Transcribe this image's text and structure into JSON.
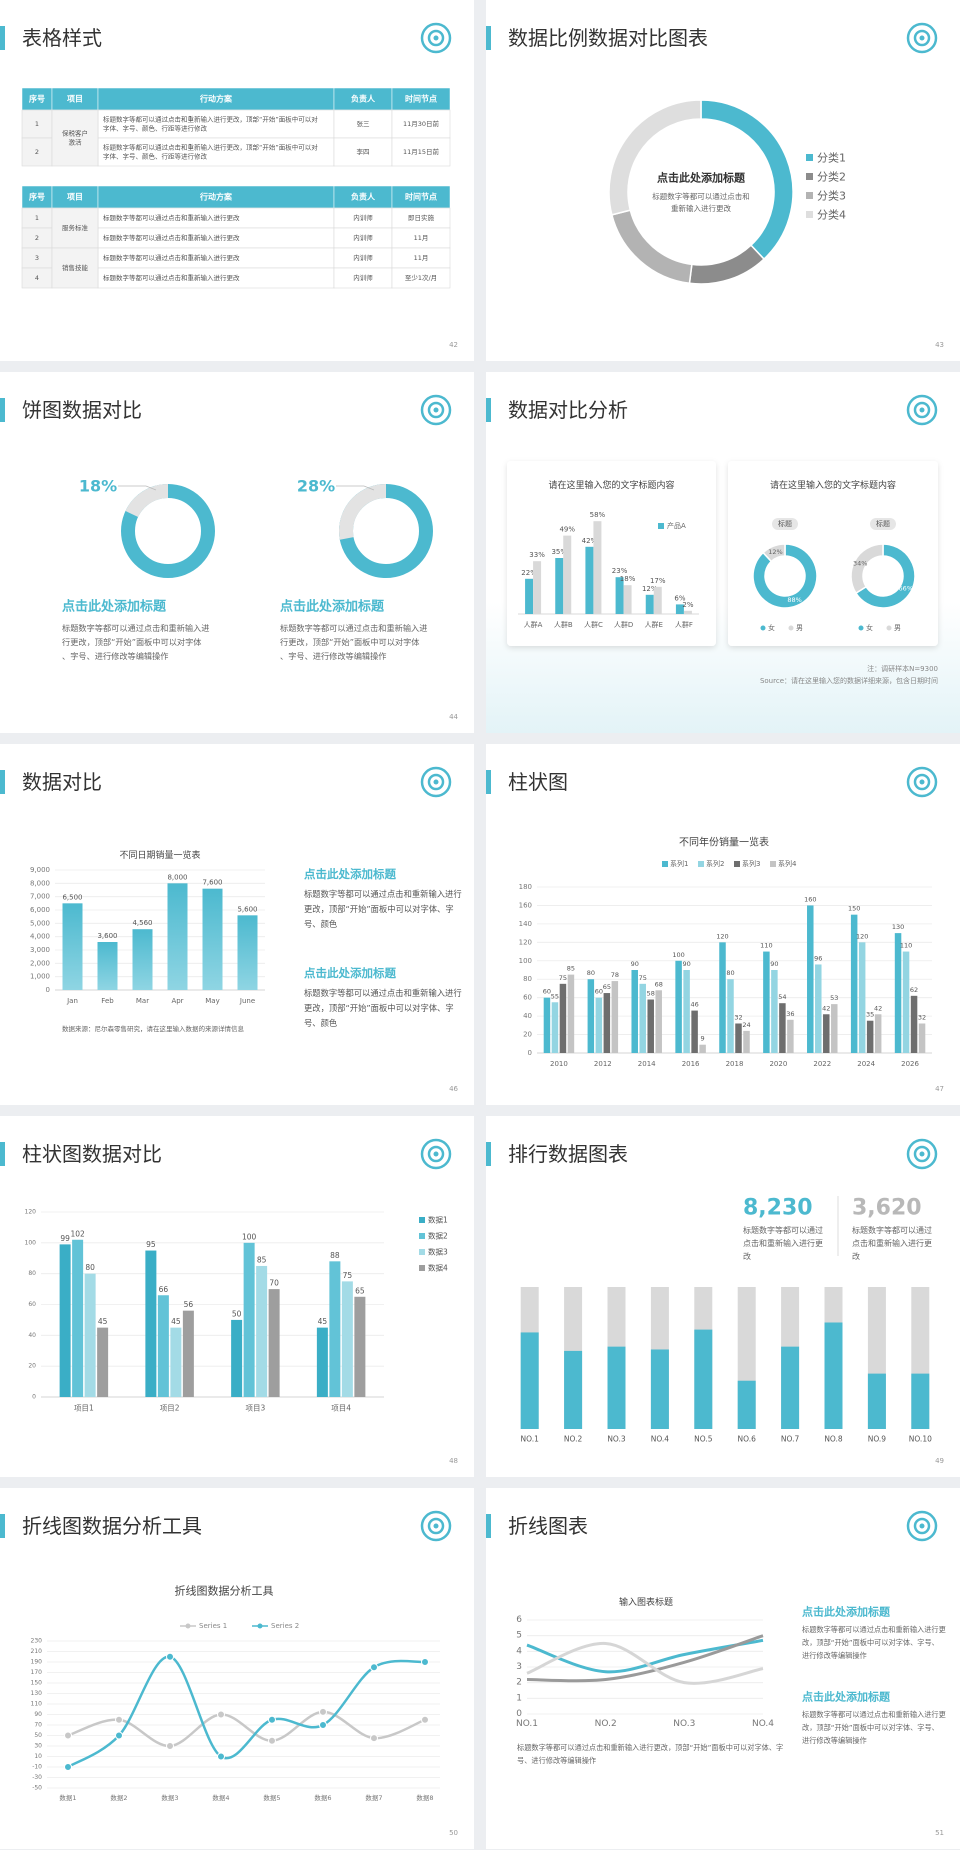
{
  "slides": [
    {
      "title": "表格样式",
      "page": "42",
      "tables": [
        {
          "headers": [
            "序号",
            "项目",
            "行动方案",
            "负责人",
            "时间节点"
          ],
          "groups": [
            {
              "item": "保税客户激活",
              "rows": [
                [
                  "1",
                  "标题数字等都可以通过点击和重新输入进行更改，顶部“开始”面板中可以对字体、字号、颜色、行距等进行修改",
                  "张三",
                  "11月30日前"
                ],
                [
                  "2",
                  "标题数字等都可以通过点击和重新输入进行更改，顶部“开始”面板中可以对字体、字号、颜色、行距等进行修改",
                  "李四",
                  "11月15日前"
                ]
              ]
            }
          ]
        },
        {
          "headers": [
            "序号",
            "项目",
            "行动方案",
            "负责人",
            "时间节点"
          ],
          "groups": [
            {
              "item": "服务标准",
              "rows": [
                [
                  "1",
                  "标题数字等都可以通过点击和重新输入进行更改",
                  "内训师",
                  "即日实施"
                ],
                [
                  "2",
                  "标题数字等都可以通过点击和重新输入进行更改",
                  "内训师",
                  "11月"
                ]
              ]
            },
            {
              "item": "销售技能",
              "rows": [
                [
                  "3",
                  "标题数字等都可以通过点击和重新输入进行更改",
                  "内训师",
                  "11月"
                ],
                [
                  "4",
                  "标题数字等都可以通过点击和重新输入进行更改",
                  "内训师",
                  "至少1次/月"
                ]
              ]
            }
          ]
        }
      ]
    },
    {
      "title": "数据比例数据对比图表",
      "page": "43",
      "chart": {
        "type": "donut",
        "categories": [
          "分类1",
          "分类2",
          "分类3",
          "分类4"
        ],
        "values": [
          38,
          14,
          19,
          29
        ],
        "colors": [
          "#4cb9cf",
          "#8c8c8c",
          "#b3b3b3",
          "#dedede"
        ],
        "center_title": "点击此处添加标题",
        "center_text": "标题数字等都可以通过点击和重新输入进行更改"
      }
    },
    {
      "title": "饼图数据对比",
      "page": "44",
      "charts": [
        {
          "type": "donut",
          "values": [
            18
          ],
          "value_labels": [
            "18%"
          ],
          "colors": [
            "#e3e3e3",
            "#4cb9cf"
          ],
          "heading": "点击此处添加标题",
          "text": "标题数字等都可以通过点击和重新输入进行更改，顶部“开始”面板中可以对字体、字号、进行修改等编辑操作"
        },
        {
          "type": "donut",
          "values": [
            28
          ],
          "value_labels": [
            "28%"
          ],
          "colors": [
            "#e3e3e3",
            "#4cb9cf"
          ],
          "heading": "点击此处添加标题",
          "text": "标题数字等都可以通过点击和重新输入进行更改，顶部“开始”面板中可以对字体、字号、进行修改等编辑操作"
        }
      ]
    },
    {
      "title": "数据对比分析",
      "page": "45",
      "cards": [
        {
          "title": "请在这里输入您的文字标题内容",
          "chart": {
            "type": "bar",
            "categories": [
              "人群A",
              "人群B",
              "人群C",
              "人群D",
              "人群E",
              "人群F"
            ],
            "series": [
              {
                "name": "产品A",
                "color": "#4cb9cf",
                "values": [
                  22,
                  35,
                  42,
                  23,
                  12,
                  6
                ],
                "value_labels": [
                  "22%",
                  "35%",
                  "42%",
                  "23%",
                  "12%",
                  "6%"
                ]
              },
              {
                "color": "#d9d9d9",
                "values": [
                  33,
                  49,
                  58,
                  18,
                  17,
                  2
                ],
                "value_labels": [
                  "33%",
                  "49%",
                  "58%",
                  "18%",
                  "17%",
                  "2%"
                ]
              }
            ]
          }
        },
        {
          "title": "请在这里输入您的文字标题内容",
          "categories": [
            "女",
            "男"
          ],
          "colors": [
            "#4cb9cf",
            "#d9d9d9"
          ],
          "charts": [
            {
              "type": "donut",
              "label": "标题",
              "values": [
                88,
                12
              ],
              "value_labels": [
                "88%",
                "12%"
              ]
            },
            {
              "type": "donut",
              "label": "标题",
              "values": [
                66,
                34
              ],
              "value_labels": [
                "66%",
                "34%"
              ]
            }
          ]
        }
      ],
      "notes": [
        "注：调研样本N=9300",
        "Source：请在这里输入您的数据详细来源，包含日期时间"
      ]
    },
    {
      "title": "数据对比",
      "page": "46",
      "chart": {
        "type": "bar",
        "title": "不同日期销量一览表",
        "categories": [
          "Jan",
          "Feb",
          "Mar",
          "Apr",
          "May",
          "June"
        ],
        "values": [
          6500,
          3600,
          4560,
          8000,
          7600,
          5600
        ],
        "value_labels": [
          "6,500",
          "3,600",
          "4,560",
          "8,000",
          "7,600",
          "5,600"
        ],
        "color": "#4cb9cf",
        "ylim": [
          0,
          9000
        ],
        "yticks": [
          0,
          {
            "value": 1000,
            "label": "1,000"
          },
          {
            "value": 2000,
            "label": "2,000"
          },
          {
            "value": 3000,
            "label": "3,000"
          },
          {
            "value": 4000,
            "label": "4,000"
          },
          {
            "value": 5000,
            "label": "5,000"
          },
          {
            "value": 6000,
            "label": "6,000"
          },
          {
            "value": 7000,
            "label": "7,000"
          },
          {
            "value": 8000,
            "label": "8,000"
          },
          {
            "value": 9000,
            "label": "9,000"
          }
        ],
        "grid": true
      },
      "source": "数据来源：尼尔森零售研究，请在这里输入数据的来源详情信息",
      "blocks": [
        {
          "heading": "点击此处添加标题",
          "text": "标题数字等都可以通过点击和重新输入进行更改，顶部“开始”面板中可以对字体、字号、颜色"
        },
        {
          "heading": "点击此处添加标题",
          "text": "标题数字等都可以通过点击和重新输入进行更改，顶部“开始”面板中可以对字体、字号、颜色"
        }
      ]
    },
    {
      "title": "柱状图",
      "page": "47",
      "chart": {
        "type": "bar",
        "title": "不同年份销量一览表",
        "categories": [
          "2010",
          "2012",
          "2014",
          "2016",
          "2018",
          "2020",
          "2022",
          "2024",
          "2026"
        ],
        "series": [
          {
            "name": "系列1",
            "color": "#4cb9cf",
            "values": [
              60,
              80,
              90,
              100,
              120,
              110,
              160,
              150,
              130
            ]
          },
          {
            "name": "系列2",
            "color": "#93d5e2",
            "values": [
              55,
              60,
              75,
              90,
              80,
              90,
              96,
              120,
              110
            ]
          },
          {
            "name": "系列3",
            "color": "#6e6e6e",
            "values": [
              75,
              65,
              58,
              46,
              32,
              54,
              42,
              35,
              62
            ]
          },
          {
            "name": "系列4",
            "color": "#c4c4c4",
            "values": [
              85,
              78,
              68,
              9,
              24,
              36,
              53,
              42,
              32
            ]
          }
        ],
        "ylim": [
          0,
          180
        ],
        "yticks": [
          0,
          20,
          40,
          60,
          80,
          100,
          120,
          140,
          160,
          180
        ],
        "grid": true
      }
    },
    {
      "title": "柱状图数据对比",
      "page": "48",
      "chart": {
        "type": "bar",
        "categories": [
          "项目1",
          "项目2",
          "项目3",
          "项目4"
        ],
        "series": [
          {
            "name": "数据1",
            "color": "#3aaec6",
            "values": [
              99,
              95,
              50,
              45
            ]
          },
          {
            "name": "数据2",
            "color": "#62c3d7",
            "values": [
              102,
              66,
              100,
              88
            ]
          },
          {
            "name": "数据3",
            "color": "#a3dbe6",
            "values": [
              80,
              45,
              85,
              75
            ]
          },
          {
            "name": "数据4",
            "color": "#9e9e9e",
            "values": [
              45,
              56,
              70,
              65
            ]
          }
        ],
        "ylim": [
          0,
          120
        ],
        "yticks": [
          0,
          20,
          40,
          60,
          80,
          100,
          120
        ],
        "grid": true
      }
    },
    {
      "title": "排行数据图表",
      "page": "49",
      "stats": [
        {
          "value": "8,230",
          "text": "标题数字等都可以通过点击和重新输入进行更改"
        },
        {
          "value": "3,620",
          "text": "标题数字等都可以通过点击和重新输入进行更改"
        }
      ],
      "chart": {
        "type": "bar",
        "categories": [
          "NO.1",
          "NO.2",
          "NO.3",
          "NO.4",
          "NO.5",
          "NO.6",
          "NO.7",
          "NO.8",
          "NO.9",
          "NO.10"
        ],
        "values": [
          68,
          55,
          58,
          56,
          70,
          34,
          58,
          75,
          39,
          39
        ],
        "ylim": [
          0,
          100
        ],
        "colors": [
          "#4cb9cf",
          "#d9d9d9"
        ]
      }
    },
    {
      "title": "折线图数据分析工具",
      "page": "50",
      "chart": {
        "type": "line",
        "title": "折线图数据分析工具",
        "categories": [
          "数据1",
          "数据2",
          "数据3",
          "数据4",
          "数据5",
          "数据6",
          "数据7",
          "数据8"
        ],
        "series": [
          {
            "name": "Series 1",
            "color": "#c8c8c8",
            "values": [
              50,
              80,
              30,
              90,
              40,
              95,
              45,
              80
            ]
          },
          {
            "name": "Series 2",
            "color": "#4cb9cf",
            "values": [
              -10,
              50,
              200,
              10,
              80,
              70,
              180,
              190
            ]
          }
        ],
        "ylim": [
          -50,
          230
        ],
        "yticks": [
          -50,
          -30,
          -10,
          10,
          30,
          50,
          70,
          90,
          110,
          130,
          150,
          170,
          190,
          210,
          230
        ],
        "grid": true,
        "markers": true
      }
    },
    {
      "title": "折线图表",
      "page": "51",
      "chart": {
        "type": "line",
        "title": "输入图表标题",
        "categories": [
          "NO.1",
          "NO.2",
          "NO.3",
          "NO.4"
        ],
        "series": [
          {
            "color": "#4cb9cf",
            "values": [
              4.4,
              2.7,
              3.8,
              4.7
            ]
          },
          {
            "color": "#9a9a9a",
            "values": [
              2.2,
              2.2,
              3.3,
              5
            ]
          },
          {
            "color": "#d6d6d6",
            "values": [
              2.6,
              4.5,
              2,
              2.9
            ]
          }
        ],
        "ylim": [
          0,
          6
        ],
        "yticks": [
          0,
          1,
          2,
          3,
          4,
          5,
          6
        ],
        "grid": true,
        "markers": false
      },
      "blocks": [
        {
          "heading": "点击此处添加标题",
          "text": "标题数字等都可以通过点击和重新输入进行更改，顶部“开始”面板中可以对字体、字号、进行修改等编辑操作"
        },
        {
          "heading": "点击此处添加标题",
          "text": "标题数字等都可以通过点击和重新输入进行更改，顶部“开始”面板中可以对字体、字号、进行修改等编辑操作"
        }
      ],
      "note": "标题数字等都可以通过点击和重新输入进行更改，顶部“开始”面板中可以对字体、字号、进行修改等编辑操作"
    }
  ]
}
